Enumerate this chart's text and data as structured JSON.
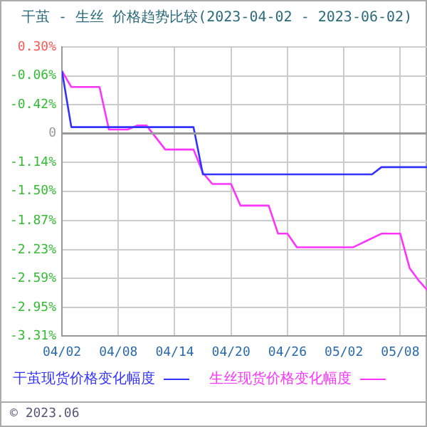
{
  "chart_data": {
    "type": "line",
    "title": "干茧 - 生丝 价格趋势比较(2023-04-02 - 2023-06-02)",
    "series": [
      {
        "name": "干茧现货价格变化幅度",
        "color": "#3333ff",
        "x": [
          "--04-02",
          "--04-03",
          "--04-16",
          "--04-17",
          "--05-05",
          "--05-06",
          "--05-11"
        ],
        "values": [
          0,
          -0.7,
          -0.7,
          -1.29,
          -1.29,
          -1.2,
          -1.2
        ]
      },
      {
        "name": "生丝现货价格变化幅度",
        "color": "#ff33ff",
        "x": [
          "--04-02",
          "--04-03",
          "--04-06",
          "--04-07",
          "--04-09",
          "--04-10",
          "--04-11",
          "--04-13",
          "--04-16",
          "--04-17",
          "--04-18",
          "--04-20",
          "--04-21",
          "--04-24",
          "--04-25",
          "--04-26",
          "--04-27",
          "--05-03",
          "--05-06",
          "--05-08",
          "--05-09",
          "--05-10",
          "--05-11"
        ],
        "values": [
          0,
          -0.2,
          -0.2,
          -0.73,
          -0.73,
          -0.68,
          -0.68,
          -0.98,
          -0.98,
          -1.27,
          -1.41,
          -1.41,
          -1.68,
          -1.68,
          -2.03,
          -2.03,
          -2.2,
          -2.2,
          -2.03,
          -2.03,
          -2.46,
          -2.62,
          -2.75
        ]
      }
    ],
    "xlim": [
      "--04-02",
      "--05-11"
    ],
    "xticks": [
      {
        "value": "--04-02",
        "label": "04/02"
      },
      {
        "value": "--04-08",
        "label": "04/08"
      },
      {
        "value": "--04-14",
        "label": "04/14"
      },
      {
        "value": "--04-20",
        "label": "04/20"
      },
      {
        "value": "--04-26",
        "label": "04/26"
      },
      {
        "value": "--05-02",
        "label": "05/02"
      },
      {
        "value": "--05-08",
        "label": "05/08"
      }
    ],
    "ylim": [
      -3.31,
      0.3
    ],
    "yticks": [
      {
        "value": 0.3,
        "label": "0.30%"
      },
      {
        "value": -0.06,
        "label": "-0.06%"
      },
      {
        "value": -0.42,
        "label": "-0.42%"
      },
      {
        "value": -0.78,
        "label": null
      },
      {
        "value": -1.14,
        "label": "-1.14%"
      },
      {
        "value": -1.5,
        "label": "-1.50%"
      },
      {
        "value": -1.87,
        "label": "-1.87%"
      },
      {
        "value": -2.23,
        "label": "-2.23%"
      },
      {
        "value": -2.59,
        "label": "-2.59%"
      },
      {
        "value": -2.95,
        "label": "-2.95%"
      },
      {
        "value": -3.31,
        "label": "-3.31%"
      }
    ],
    "ref_lines": [
      {
        "axis": "y",
        "value": -0.78,
        "color": "#999999"
      }
    ],
    "grid": true,
    "legend": "bottom",
    "marker": "none",
    "line_style": "solid",
    "annotations": [
      "0",
      "© 2023.06"
    ]
  }
}
